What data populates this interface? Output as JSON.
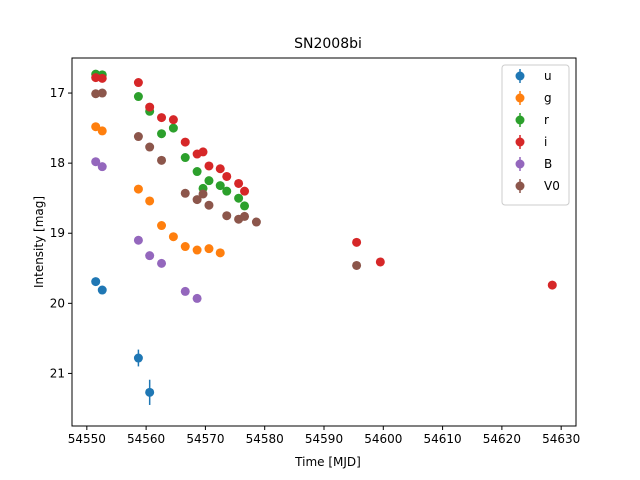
{
  "chart_data": {
    "type": "scatter",
    "title": "SN2008bi",
    "xlabel": "Time [MJD]",
    "ylabel": "Intensity [mag]",
    "xlim": [
      54547.5,
      54632.5
    ],
    "ylim": [
      21.75,
      16.5
    ],
    "y_inverted": true,
    "grid": false,
    "legend_position": "top-right",
    "xticks": [
      54550,
      54560,
      54570,
      54580,
      54590,
      54600,
      54610,
      54620,
      54630
    ],
    "yticks": [
      17,
      18,
      19,
      20,
      21
    ],
    "series": [
      {
        "name": "u",
        "color": "#1f77b4",
        "points": [
          {
            "x": 54551.5,
            "y": 19.69,
            "err": 0.03
          },
          {
            "x": 54552.6,
            "y": 19.81,
            "err": 0.03
          },
          {
            "x": 54558.7,
            "y": 20.78,
            "err": 0.12
          },
          {
            "x": 54560.6,
            "y": 21.27,
            "err": 0.18
          }
        ]
      },
      {
        "name": "g",
        "color": "#ff7f0e",
        "points": [
          {
            "x": 54551.5,
            "y": 17.48,
            "err": 0.02
          },
          {
            "x": 54552.6,
            "y": 17.54,
            "err": 0.02
          },
          {
            "x": 54558.7,
            "y": 18.37,
            "err": 0.02
          },
          {
            "x": 54560.6,
            "y": 18.54,
            "err": 0.02
          },
          {
            "x": 54562.6,
            "y": 18.89,
            "err": 0.02
          },
          {
            "x": 54564.6,
            "y": 19.05,
            "err": 0.02
          },
          {
            "x": 54566.6,
            "y": 19.19,
            "err": 0.02
          },
          {
            "x": 54568.6,
            "y": 19.24,
            "err": 0.02
          },
          {
            "x": 54570.6,
            "y": 19.22,
            "err": 0.02
          },
          {
            "x": 54572.5,
            "y": 19.28,
            "err": 0.02
          }
        ]
      },
      {
        "name": "r",
        "color": "#2ca02c",
        "points": [
          {
            "x": 54551.5,
            "y": 16.73,
            "err": 0.02
          },
          {
            "x": 54552.6,
            "y": 16.74,
            "err": 0.02
          },
          {
            "x": 54558.7,
            "y": 17.05,
            "err": 0.02
          },
          {
            "x": 54560.6,
            "y": 17.26,
            "err": 0.02
          },
          {
            "x": 54562.6,
            "y": 17.58,
            "err": 0.02
          },
          {
            "x": 54564.6,
            "y": 17.5,
            "err": 0.02
          },
          {
            "x": 54566.6,
            "y": 17.92,
            "err": 0.02
          },
          {
            "x": 54568.6,
            "y": 18.12,
            "err": 0.02
          },
          {
            "x": 54569.6,
            "y": 18.36,
            "err": 0.02
          },
          {
            "x": 54570.6,
            "y": 18.25,
            "err": 0.02
          },
          {
            "x": 54572.5,
            "y": 18.32,
            "err": 0.02
          },
          {
            "x": 54573.6,
            "y": 18.4,
            "err": 0.02
          },
          {
            "x": 54575.6,
            "y": 18.5,
            "err": 0.02
          },
          {
            "x": 54576.6,
            "y": 18.61,
            "err": 0.02
          }
        ]
      },
      {
        "name": "i",
        "color": "#d62728",
        "points": [
          {
            "x": 54551.5,
            "y": 16.78,
            "err": 0.02
          },
          {
            "x": 54552.6,
            "y": 16.79,
            "err": 0.02
          },
          {
            "x": 54558.7,
            "y": 16.85,
            "err": 0.02
          },
          {
            "x": 54560.6,
            "y": 17.2,
            "err": 0.02
          },
          {
            "x": 54562.6,
            "y": 17.35,
            "err": 0.02
          },
          {
            "x": 54564.6,
            "y": 17.38,
            "err": 0.02
          },
          {
            "x": 54566.6,
            "y": 17.7,
            "err": 0.02
          },
          {
            "x": 54568.6,
            "y": 17.87,
            "err": 0.02
          },
          {
            "x": 54569.6,
            "y": 17.84,
            "err": 0.02
          },
          {
            "x": 54570.6,
            "y": 18.04,
            "err": 0.02
          },
          {
            "x": 54572.5,
            "y": 18.08,
            "err": 0.02
          },
          {
            "x": 54573.6,
            "y": 18.19,
            "err": 0.02
          },
          {
            "x": 54575.6,
            "y": 18.29,
            "err": 0.02
          },
          {
            "x": 54576.6,
            "y": 18.4,
            "err": 0.02
          },
          {
            "x": 54595.5,
            "y": 19.13,
            "err": 0.02
          },
          {
            "x": 54599.5,
            "y": 19.41,
            "err": 0.03
          },
          {
            "x": 54628.5,
            "y": 19.74,
            "err": 0.06
          }
        ]
      },
      {
        "name": "B",
        "color": "#9467bd",
        "points": [
          {
            "x": 54551.5,
            "y": 17.98,
            "err": 0.02
          },
          {
            "x": 54552.6,
            "y": 18.05,
            "err": 0.02
          },
          {
            "x": 54558.7,
            "y": 19.1,
            "err": 0.02
          },
          {
            "x": 54560.6,
            "y": 19.32,
            "err": 0.02
          },
          {
            "x": 54562.6,
            "y": 19.43,
            "err": 0.02
          },
          {
            "x": 54566.6,
            "y": 19.83,
            "err": 0.02
          },
          {
            "x": 54568.6,
            "y": 19.93,
            "err": 0.02
          }
        ]
      },
      {
        "name": "V0",
        "color": "#8c564b",
        "points": [
          {
            "x": 54551.5,
            "y": 17.01,
            "err": 0.02
          },
          {
            "x": 54552.6,
            "y": 17.0,
            "err": 0.02
          },
          {
            "x": 54558.7,
            "y": 17.62,
            "err": 0.02
          },
          {
            "x": 54560.6,
            "y": 17.77,
            "err": 0.02
          },
          {
            "x": 54562.6,
            "y": 17.96,
            "err": 0.02
          },
          {
            "x": 54566.6,
            "y": 18.43,
            "err": 0.02
          },
          {
            "x": 54568.6,
            "y": 18.52,
            "err": 0.02
          },
          {
            "x": 54569.6,
            "y": 18.44,
            "err": 0.02
          },
          {
            "x": 54570.6,
            "y": 18.6,
            "err": 0.02
          },
          {
            "x": 54573.6,
            "y": 18.75,
            "err": 0.02
          },
          {
            "x": 54575.6,
            "y": 18.8,
            "err": 0.02
          },
          {
            "x": 54576.6,
            "y": 18.76,
            "err": 0.02
          },
          {
            "x": 54578.6,
            "y": 18.84,
            "err": 0.02
          },
          {
            "x": 54595.5,
            "y": 19.46,
            "err": 0.02
          }
        ]
      }
    ]
  }
}
